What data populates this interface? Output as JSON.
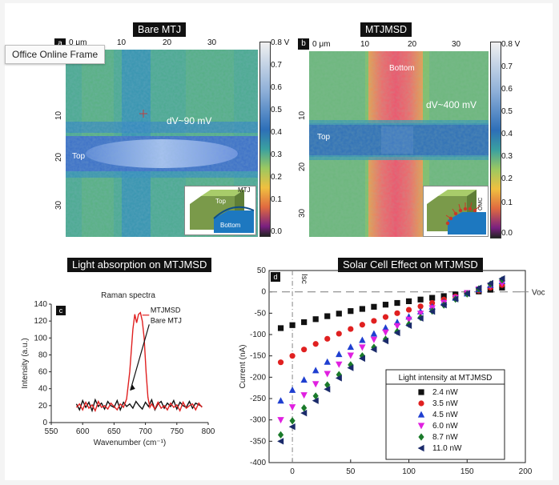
{
  "tooltip": "Office Online Frame",
  "colorbar": {
    "labels": [
      "0.8 V",
      "0.7",
      "0.6",
      "0.5",
      "0.4",
      "0.3",
      "0.2",
      "0.1",
      "0.0"
    ]
  },
  "panels": {
    "a": {
      "title": "Bare MTJ",
      "letter": "a",
      "x_ticks": [
        "0 μm",
        "10",
        "20",
        "30"
      ],
      "y_ticks": [
        "0 μm",
        "10",
        "20",
        "30"
      ],
      "annotation": "dV~90 mV",
      "top_label": "Top",
      "inset": {
        "mtj": "MTJ",
        "top": "Top",
        "bottom": "Bottom"
      }
    },
    "b": {
      "title": "MTJMSD",
      "letter": "b",
      "x_ticks": [
        "0 μm",
        "10",
        "20",
        "30"
      ],
      "y_ticks": [
        "0 μm",
        "10",
        "20",
        "30"
      ],
      "annotation": "dV~400 mV",
      "top_label": "Top",
      "bottom_label": "Bottom",
      "inset": {
        "omc": "OMC"
      }
    },
    "c": {
      "title": "Light absorption on MTJMSD"
    },
    "d": {
      "title": "Solar Cell Effect on MTJMSD"
    }
  },
  "chart_data": [
    {
      "id": "c",
      "type": "line",
      "letter": "c",
      "title": "Raman spectra",
      "xlabel": "Wavenumber (cm⁻¹)",
      "ylabel": "Intensity (a.u.)",
      "xlim": [
        550,
        800
      ],
      "ylim": [
        0,
        140
      ],
      "xticks": [
        550,
        600,
        650,
        700,
        750,
        800
      ],
      "yticks": [
        0,
        20,
        40,
        60,
        80,
        100,
        120,
        140
      ],
      "series": [
        {
          "name": "MTJMSD",
          "color": "#e02020",
          "x": [
            590,
            595,
            600,
            605,
            610,
            615,
            620,
            625,
            630,
            635,
            640,
            645,
            650,
            655,
            660,
            665,
            670,
            675,
            680,
            683,
            686,
            689,
            692,
            695,
            698,
            701,
            704,
            707,
            710,
            715,
            720,
            725,
            730,
            735,
            740,
            745,
            750,
            755,
            760,
            765,
            770,
            775,
            780,
            785,
            790
          ],
          "y": [
            18,
            22,
            15,
            24,
            17,
            21,
            14,
            25,
            18,
            20,
            16,
            23,
            19,
            15,
            22,
            18,
            28,
            60,
            110,
            128,
            118,
            128,
            130,
            120,
            100,
            60,
            30,
            18,
            22,
            16,
            24,
            17,
            20,
            15,
            23,
            18,
            21,
            14,
            24,
            17,
            20,
            22,
            15,
            23,
            18
          ]
        },
        {
          "name": "Bare MTJ",
          "color": "#111111",
          "x": [
            590,
            595,
            600,
            605,
            610,
            615,
            620,
            625,
            630,
            635,
            640,
            645,
            650,
            655,
            660,
            665,
            670,
            675,
            680,
            685,
            690,
            695,
            700,
            705,
            710,
            715,
            720,
            725,
            730,
            735,
            740,
            745,
            750,
            755,
            760,
            765,
            770,
            775,
            780,
            785,
            790
          ],
          "y": [
            22,
            15,
            26,
            18,
            24,
            14,
            27,
            19,
            23,
            16,
            25,
            20,
            18,
            26,
            15,
            24,
            19,
            22,
            17,
            25,
            20,
            16,
            24,
            19,
            27,
            15,
            22,
            25,
            17,
            23,
            19,
            26,
            16,
            24,
            20,
            18,
            25,
            17,
            23,
            21,
            19
          ]
        }
      ]
    },
    {
      "id": "d",
      "type": "scatter",
      "letter": "d",
      "xlabel": "",
      "ylabel": "Current (nA)",
      "xlim": [
        -20,
        200
      ],
      "ylim": [
        -400,
        50
      ],
      "xticks": [
        0,
        50,
        100,
        150,
        200
      ],
      "yticks": [
        50,
        0,
        -50,
        -100,
        -150,
        -200,
        -250,
        -300,
        -350,
        -400
      ],
      "isc_label": "Isc",
      "voc_label": "Voc",
      "legend_title": "Light intensity at MTJMSD",
      "x": [
        -10,
        0,
        10,
        20,
        30,
        40,
        50,
        60,
        70,
        80,
        90,
        100,
        110,
        120,
        130,
        140,
        150,
        160,
        170,
        180
      ],
      "series": [
        {
          "name": "2.4 nW",
          "marker": "square",
          "color": "#111111",
          "y": [
            -85,
            -78,
            -71,
            -64,
            -57,
            -51,
            -45,
            -40,
            -35,
            -30,
            -26,
            -22,
            -18,
            -14,
            -10,
            -6,
            -3,
            1,
            5,
            10
          ]
        },
        {
          "name": "3.5 nW",
          "marker": "circle",
          "color": "#e02020",
          "y": [
            -165,
            -150,
            -135,
            -122,
            -110,
            -98,
            -87,
            -77,
            -68,
            -59,
            -50,
            -42,
            -34,
            -26,
            -18,
            -11,
            -4,
            3,
            10,
            16
          ]
        },
        {
          "name": "4.5 nW",
          "marker": "triangle-up",
          "color": "#1f3fd0",
          "y": [
            -255,
            -230,
            -206,
            -184,
            -164,
            -146,
            -129,
            -113,
            -98,
            -84,
            -71,
            -58,
            -46,
            -35,
            -24,
            -14,
            -4,
            6,
            16,
            25
          ]
        },
        {
          "name": "6.0 nW",
          "marker": "triangle-down",
          "color": "#e020e0",
          "y": [
            -300,
            -270,
            -242,
            -216,
            -192,
            -170,
            -149,
            -130,
            -112,
            -95,
            -80,
            -65,
            -51,
            -38,
            -26,
            -14,
            -3,
            6,
            14,
            20
          ]
        },
        {
          "name": "8.7 nW",
          "marker": "diamond",
          "color": "#1a7a2a",
          "y": [
            -335,
            -302,
            -272,
            -244,
            -218,
            -194,
            -171,
            -150,
            -130,
            -111,
            -93,
            -76,
            -60,
            -45,
            -31,
            -17,
            -5,
            7,
            18,
            28
          ]
        },
        {
          "name": "11.0 nW",
          "marker": "triangle-left",
          "color": "#1a2a6a",
          "y": [
            -350,
            -316,
            -284,
            -255,
            -228,
            -202,
            -178,
            -156,
            -135,
            -115,
            -96,
            -79,
            -62,
            -46,
            -31,
            -17,
            -4,
            9,
            20,
            31
          ]
        }
      ]
    }
  ]
}
